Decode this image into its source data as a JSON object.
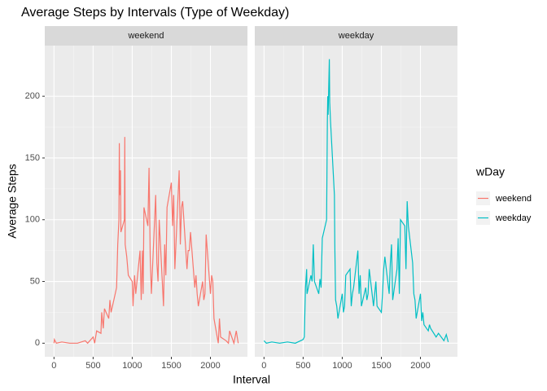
{
  "chart_data": {
    "type": "line",
    "title": "Average Steps by Intervals (Type of Weekday)",
    "x_label": "Interval",
    "y_label": "Average Steps",
    "legend_title": "wDay",
    "xlim": [
      -118,
      2473
    ],
    "xticks": [
      0,
      500,
      1000,
      1500,
      2000
    ],
    "ylim": [
      -11,
      241
    ],
    "yticks": [
      0,
      50,
      100,
      150,
      200
    ],
    "grid": true,
    "minor_grid": true,
    "facet_by_series": true,
    "legend": "right",
    "series": [
      {
        "name": "weekend",
        "color": "#f8766d",
        "x": [
          0,
          5,
          30,
          100,
          200,
          300,
          400,
          430,
          500,
          520,
          545,
          600,
          610,
          630,
          645,
          700,
          715,
          730,
          800,
          815,
          830,
          835,
          840,
          850,
          855,
          900,
          905,
          910,
          930,
          950,
          1000,
          1010,
          1030,
          1045,
          1100,
          1115,
          1130,
          1140,
          1150,
          1200,
          1215,
          1230,
          1245,
          1300,
          1315,
          1330,
          1345,
          1400,
          1415,
          1430,
          1445,
          1500,
          1515,
          1530,
          1545,
          1600,
          1615,
          1630,
          1645,
          1700,
          1715,
          1730,
          1745,
          1800,
          1815,
          1830,
          1845,
          1900,
          1915,
          1930,
          1945,
          2000,
          2015,
          2030,
          2045,
          2100,
          2115,
          2130,
          2200,
          2230,
          2245,
          2300,
          2330,
          2355
        ],
        "values": [
          0,
          3,
          0,
          1,
          0,
          0,
          2,
          0,
          5,
          0,
          10,
          8,
          25,
          12,
          28,
          20,
          35,
          25,
          45,
          80,
          100,
          162,
          120,
          140,
          90,
          100,
          167,
          80,
          70,
          55,
          50,
          30,
          55,
          40,
          75,
          35,
          75,
          40,
          110,
          95,
          142,
          70,
          40,
          120,
          65,
          50,
          100,
          30,
          80,
          55,
          110,
          130,
          95,
          120,
          60,
          140,
          80,
          110,
          115,
          60,
          75,
          75,
          90,
          45,
          55,
          40,
          30,
          50,
          35,
          40,
          88,
          40,
          55,
          50,
          20,
          0,
          20,
          5,
          2,
          0,
          10,
          0,
          10,
          0
        ]
      },
      {
        "name": "weekday",
        "color": "#00bfc4",
        "x": [
          0,
          30,
          100,
          200,
          300,
          400,
          500,
          515,
          530,
          545,
          550,
          600,
          615,
          630,
          645,
          700,
          715,
          730,
          745,
          800,
          810,
          815,
          820,
          835,
          840,
          850,
          900,
          905,
          915,
          930,
          945,
          1000,
          1015,
          1030,
          1045,
          1100,
          1115,
          1130,
          1145,
          1200,
          1215,
          1230,
          1245,
          1300,
          1315,
          1330,
          1345,
          1400,
          1415,
          1430,
          1445,
          1500,
          1515,
          1530,
          1545,
          1600,
          1615,
          1630,
          1645,
          1700,
          1715,
          1730,
          1745,
          1800,
          1815,
          1830,
          1845,
          1900,
          1915,
          1930,
          1945,
          2000,
          2015,
          2030,
          2045,
          2100,
          2115,
          2130,
          2200,
          2230,
          2300,
          2330,
          2355
        ],
        "values": [
          2,
          0,
          1,
          0,
          1,
          0,
          3,
          5,
          45,
          60,
          40,
          55,
          50,
          80,
          50,
          40,
          52,
          45,
          85,
          100,
          180,
          200,
          185,
          230,
          195,
          180,
          120,
          80,
          35,
          30,
          20,
          40,
          25,
          30,
          55,
          60,
          30,
          40,
          45,
          75,
          40,
          55,
          30,
          45,
          35,
          40,
          60,
          30,
          40,
          50,
          30,
          25,
          40,
          60,
          70,
          40,
          65,
          80,
          35,
          60,
          85,
          40,
          100,
          95,
          60,
          115,
          95,
          65,
          40,
          35,
          20,
          40,
          18,
          25,
          15,
          10,
          15,
          12,
          5,
          8,
          2,
          7,
          1
        ]
      }
    ]
  }
}
